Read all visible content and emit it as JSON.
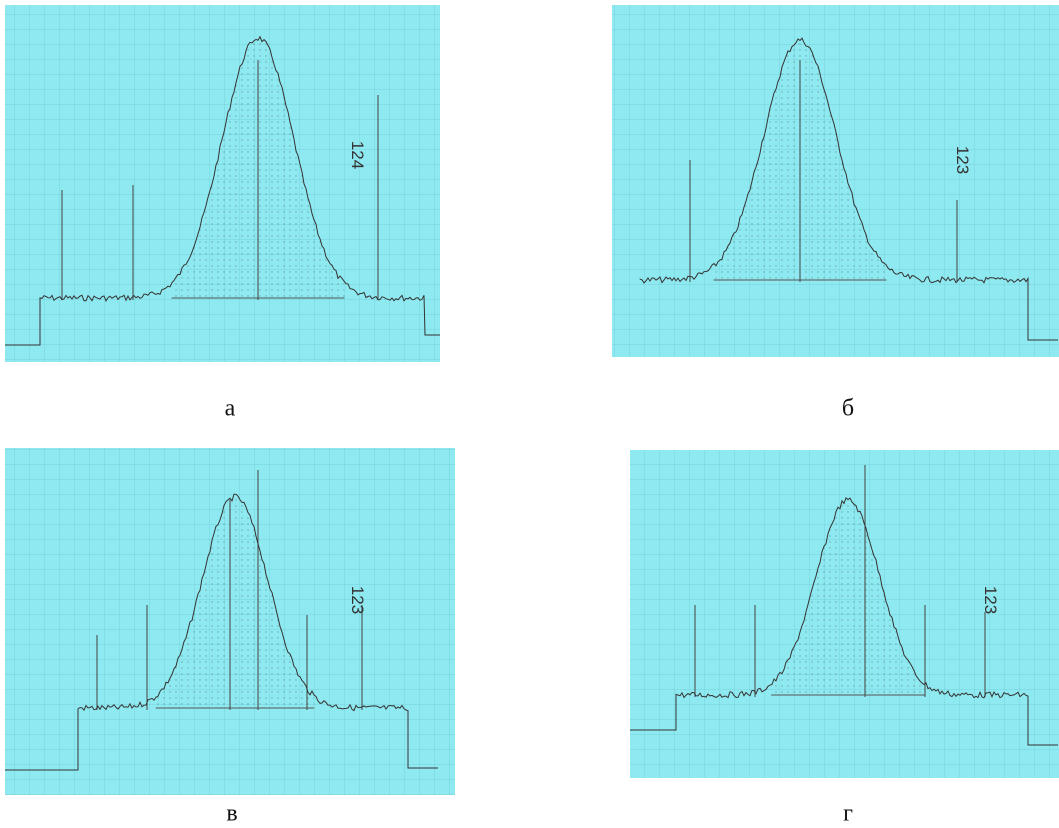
{
  "panels": [
    {
      "label": "а",
      "note": "124"
    },
    {
      "label": "б",
      "note": "123"
    },
    {
      "label": "в",
      "note": "123"
    },
    {
      "label": "г",
      "note": "123"
    }
  ]
}
